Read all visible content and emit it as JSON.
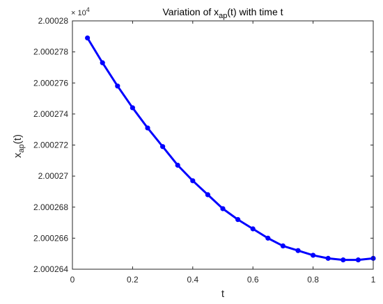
{
  "chart_data": {
    "type": "line",
    "title": {
      "main": "Variation of x",
      "sub": "ap",
      "rest": "(t) with time t"
    },
    "xlabel": "t",
    "ylabel": {
      "main": "x",
      "sub": "ap",
      "rest": "(t)"
    },
    "y_exponent": {
      "base": "× 10",
      "power": "4"
    },
    "xlim": [
      0,
      1
    ],
    "ylim": [
      2.000264,
      2.00028
    ],
    "x_ticks": [
      0,
      0.2,
      0.4,
      0.6,
      0.8,
      1
    ],
    "x_tick_labels": [
      "0",
      "0.2",
      "0.4",
      "0.6",
      "0.8",
      "1"
    ],
    "y_ticks": [
      2.000264,
      2.000266,
      2.000268,
      2.00027,
      2.000272,
      2.000274,
      2.000276,
      2.000278,
      2.00028
    ],
    "y_tick_labels": [
      "2.000264",
      "2.000266",
      "2.000268",
      "2.00027",
      "2.000272",
      "2.000274",
      "2.000276",
      "2.000278",
      "2.00028"
    ],
    "grid": false,
    "series": [
      {
        "color": "#0000ff",
        "x": [
          0.05,
          0.1,
          0.15,
          0.2,
          0.25,
          0.3,
          0.35,
          0.4,
          0.45,
          0.5,
          0.55,
          0.6,
          0.65,
          0.7,
          0.75,
          0.8,
          0.85,
          0.9,
          0.95,
          1.0
        ],
        "y": [
          2.0002789,
          2.0002773,
          2.0002758,
          2.0002744,
          2.0002731,
          2.0002719,
          2.0002707,
          2.0002697,
          2.0002688,
          2.0002679,
          2.0002672,
          2.0002666,
          2.000266,
          2.0002655,
          2.0002652,
          2.0002649,
          2.0002647,
          2.0002646,
          2.0002646,
          2.0002647
        ]
      }
    ]
  }
}
